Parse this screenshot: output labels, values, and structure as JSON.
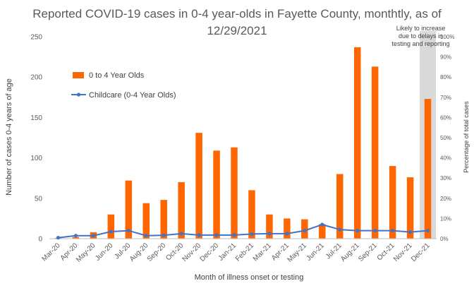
{
  "chart_data": {
    "type": "bar",
    "title": "Reported COVID-19 cases in 0-4 year-olds in Fayette County, monthtly, as of 12/29/2021",
    "xlabel": "Month of illness onset or testing",
    "ylabel": "Number of cases 0-4 years of age",
    "y2label": "Percentage of total cases",
    "ylim": [
      0,
      250
    ],
    "yticks": [
      0,
      50,
      100,
      150,
      200,
      250
    ],
    "y2lim": [
      0,
      100
    ],
    "y2ticks": [
      "0%",
      "10%",
      "20%",
      "30%",
      "40%",
      "50%",
      "60%",
      "70%",
      "80%",
      "90%",
      "100%"
    ],
    "categories": [
      "Mar-20",
      "Apr-20",
      "May-20",
      "Jun-20",
      "Jul-20",
      "Aug-20",
      "Sep-20",
      "Oct-20",
      "Nov-20",
      "Dec-20",
      "Jan-21",
      "Feb-21",
      "Mar-21",
      "Apr-21",
      "May-21",
      "Jun-21",
      "Jul-21",
      "Aug-21",
      "Sep-21",
      "Oct-21",
      "Nov-21",
      "Dec-21"
    ],
    "series": [
      {
        "name": "0 to 4 Year Olds",
        "type": "bar",
        "axis": "left",
        "color": "#ff6600",
        "values": [
          1,
          2,
          8,
          30,
          72,
          44,
          48,
          70,
          131,
          109,
          113,
          60,
          30,
          25,
          24,
          18,
          80,
          237,
          213,
          90,
          76,
          173
        ]
      },
      {
        "name": "Childcare (0-4 Year Olds)",
        "type": "line",
        "axis": "right",
        "color": "#4472c4",
        "values": [
          0.5,
          1.5,
          1.5,
          3.5,
          4,
          1.5,
          1.7,
          2.5,
          1.8,
          1.8,
          1.8,
          2.3,
          2.5,
          2.5,
          4,
          7,
          4.5,
          4,
          4,
          4,
          3.3,
          4
        ]
      }
    ],
    "annotation": {
      "lines": [
        "Likely to increase",
        "due to delays in",
        "testing and reporting"
      ],
      "highlight_category": "Dec-21",
      "highlight_color": "#d9d9d9"
    },
    "grid": false
  }
}
